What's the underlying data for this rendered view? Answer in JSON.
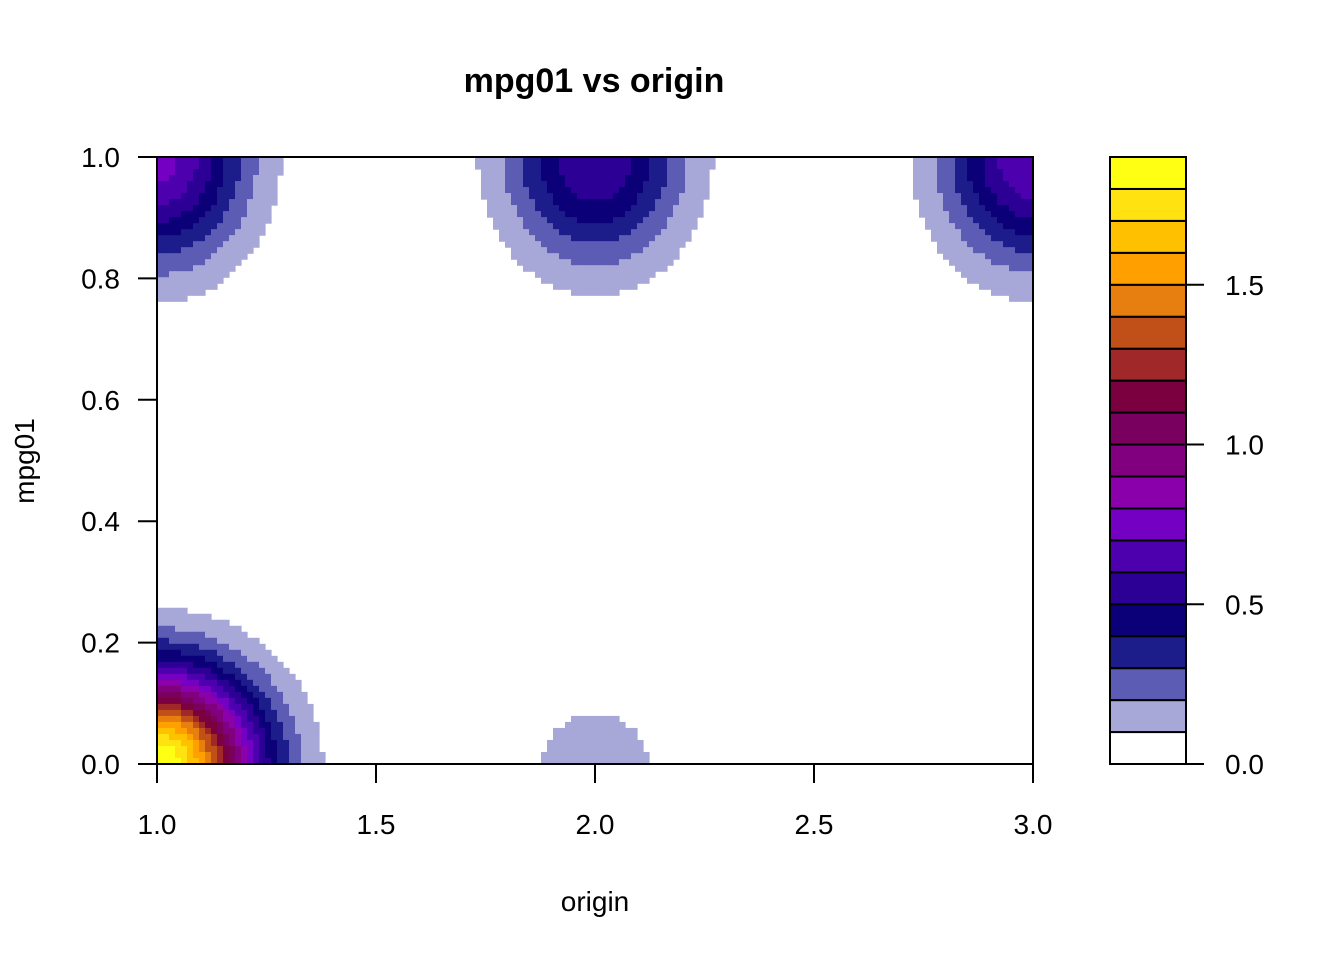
{
  "chart_data": {
    "type": "filled-contour",
    "title": "mpg01 vs origin",
    "xlabel": "origin",
    "ylabel": "mpg01",
    "xlim": [
      1.0,
      3.0
    ],
    "ylim": [
      0.0,
      1.0
    ],
    "x_ticks": [
      "1.0",
      "1.5",
      "2.0",
      "2.5",
      "3.0"
    ],
    "y_ticks": [
      "0.0",
      "0.2",
      "0.4",
      "0.6",
      "0.8",
      "1.0"
    ],
    "levels": [
      0.0,
      0.1,
      0.2,
      0.3,
      0.4,
      0.5,
      0.6,
      0.7,
      0.8,
      0.9,
      1.0,
      1.1,
      1.2,
      1.3,
      1.4,
      1.5,
      1.6,
      1.7,
      1.8,
      1.9
    ],
    "level_colors": [
      "#ffffff",
      "#a8a8d8",
      "#5c5cb4",
      "#1c1c8a",
      "#0c0078",
      "#2c0094",
      "#4c00ae",
      "#7400c4",
      "#8a00aa",
      "#800080",
      "#7a0060",
      "#7a0040",
      "#a02828",
      "#c05018",
      "#e67e10",
      "#ffa000",
      "#ffc000",
      "#ffe210",
      "#ffff14"
    ],
    "legend_ticks": [
      "0.0",
      "0.5",
      "1.0",
      "1.5"
    ],
    "legend_tick_values": [
      0.0,
      0.5,
      1.0,
      1.5
    ],
    "density_peaks": [
      {
        "x": 1.0,
        "y": 0.0,
        "peak": 1.9,
        "sx": 0.22,
        "sy": 0.15
      },
      {
        "x": 1.0,
        "y": 1.0,
        "peak": 0.74,
        "sx": 0.2,
        "sy": 0.17
      },
      {
        "x": 2.0,
        "y": 1.0,
        "peak": 0.6,
        "sx": 0.2,
        "sy": 0.17
      },
      {
        "x": 3.0,
        "y": 1.0,
        "peak": 0.7,
        "sx": 0.2,
        "sy": 0.17
      },
      {
        "x": 2.0,
        "y": 0.0,
        "peak": 0.142,
        "sx": 0.2,
        "sy": 0.14
      }
    ]
  }
}
